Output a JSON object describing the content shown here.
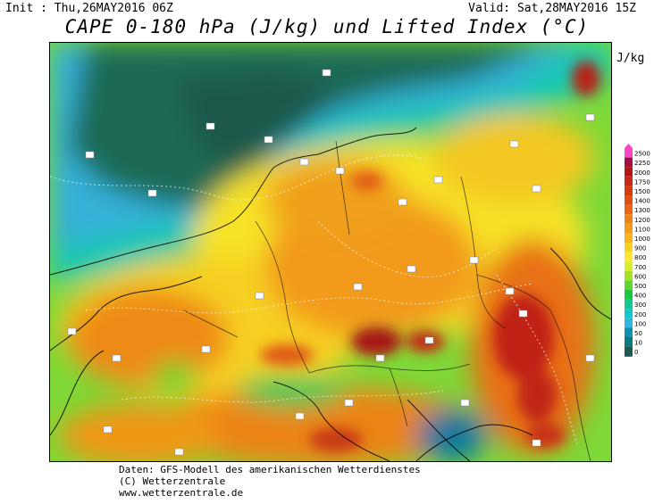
{
  "header": {
    "init": "Init : Thu,26MAY2016 06Z",
    "valid": "Valid: Sat,28MAY2016 15Z",
    "title": "CAPE 0-180 hPa (J/kg) und Lifted Index (°C)"
  },
  "legend": {
    "unit": "J/kg",
    "levels": [
      "2500",
      "2250",
      "2000",
      "1750",
      "1500",
      "1400",
      "1300",
      "1200",
      "1100",
      "1000",
      "900",
      "800",
      "700",
      "600",
      "500",
      "400",
      "300",
      "200",
      "100",
      "50",
      "10",
      "0"
    ],
    "colors": [
      "#ff44cc",
      "#a01040",
      "#b01818",
      "#c82818",
      "#d83a10",
      "#e05010",
      "#e86614",
      "#ee8018",
      "#f49a1c",
      "#f8b41e",
      "#fcd020",
      "#ffe630",
      "#d8ec30",
      "#a8e028",
      "#60d430",
      "#18c840",
      "#10c890",
      "#10c8c8",
      "#30b4e0",
      "#1090b0",
      "#107880",
      "#1e5a50"
    ]
  },
  "credits": {
    "line1": "Daten: GFS-Modell des amerikanischen Wetterdienstes",
    "line2": "(C) Wetterzentrale",
    "line3": "www.wetterzentrale.de"
  }
}
